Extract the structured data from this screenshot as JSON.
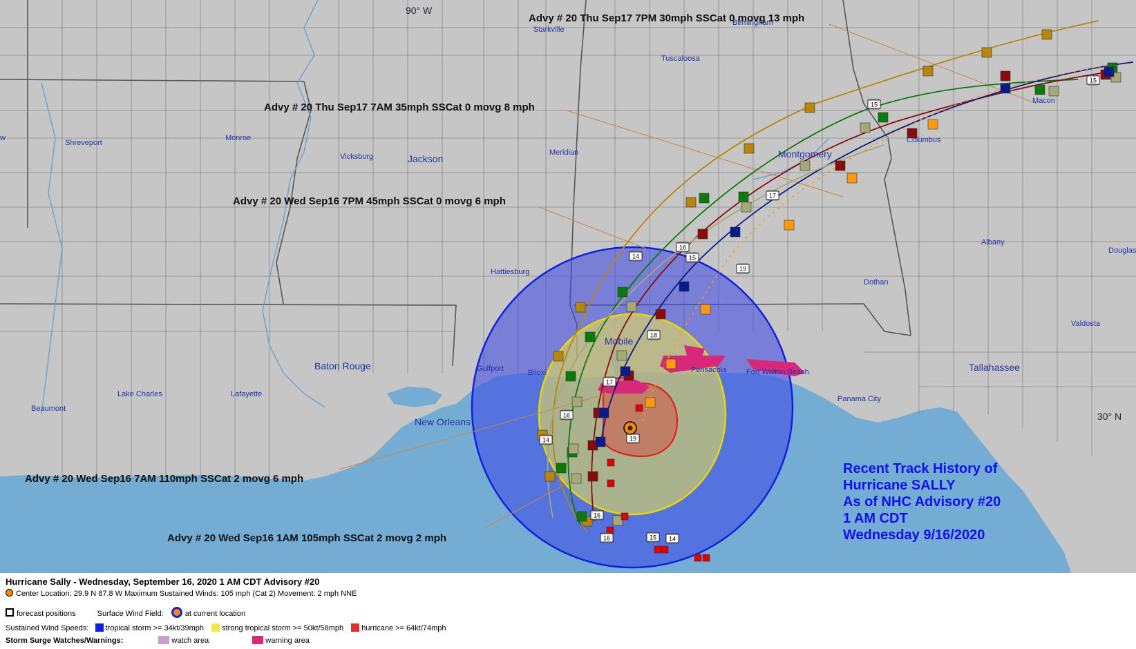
{
  "map": {
    "labels": {
      "lon_90w": "90° W",
      "lat_30n": "30° N"
    },
    "cities": [
      {
        "name": "Starkville",
        "cls": "city"
      },
      {
        "name": "Birmingham",
        "cls": "city"
      },
      {
        "name": "Tuscaloosa",
        "cls": "city"
      },
      {
        "name": "Shreveport",
        "cls": "city"
      },
      {
        "name": "Monroe",
        "cls": "city"
      },
      {
        "name": "Vicksburg",
        "cls": "city"
      },
      {
        "name": "Jackson",
        "cls": "big-city"
      },
      {
        "name": "Meridian",
        "cls": "city"
      },
      {
        "name": "Montgomery",
        "cls": "big-city"
      },
      {
        "name": "Columbus",
        "cls": "city"
      },
      {
        "name": "Macon",
        "cls": "city"
      },
      {
        "name": "Hattiesburg",
        "cls": "city"
      },
      {
        "name": "Albany",
        "cls": "city"
      },
      {
        "name": "Douglas",
        "cls": "city"
      },
      {
        "name": "Dothan",
        "cls": "city"
      },
      {
        "name": "Valdosta",
        "cls": "city"
      },
      {
        "name": "Mobile",
        "cls": "big-city"
      },
      {
        "name": "Baton Rouge",
        "cls": "big-city"
      },
      {
        "name": "Gulfport",
        "cls": "city"
      },
      {
        "name": "Biloxi",
        "cls": "city"
      },
      {
        "name": "Pensacola",
        "cls": "city"
      },
      {
        "name": "Fort Walton Beach",
        "cls": "city"
      },
      {
        "name": "Tallahassee",
        "cls": "big-city"
      },
      {
        "name": "Lake Charles",
        "cls": "city"
      },
      {
        "name": "Lafayette",
        "cls": "city"
      },
      {
        "name": "Beaumont",
        "cls": "city"
      },
      {
        "name": "New Orleans",
        "cls": "big-city"
      },
      {
        "name": "Panama City",
        "cls": "city"
      },
      {
        "name": "w",
        "cls": "city"
      }
    ],
    "advisories": [
      "Advy # 20 Thu Sep17 7PM  30mph SSCat 0 movg 13 mph",
      "Advy # 20 Thu Sep17 7AM  35mph SSCat 0 movg 8 mph",
      "Advy # 20 Wed Sep16 7PM  45mph SSCat 0 movg 6 mph",
      "Advy # 20 Wed Sep16 7AM  110mph SSCat 2 movg 6 mph",
      "Advy # 20 Wed Sep16 1AM  105mph SSCat 2 movg 2 mph"
    ],
    "title_lines": [
      "Recent Track History of",
      "Hurricane SALLY",
      "As of NHC Advisory #20",
      "1 AM CDT",
      "Wednesday 9/16/2020"
    ],
    "markers": {
      "green": [
        "16",
        "15"
      ],
      "olive": [
        "14"
      ],
      "navy": [
        "18",
        "16"
      ],
      "dred": [
        "17",
        "16",
        "15"
      ],
      "dark": [
        "15"
      ],
      "extra": [
        "14",
        "17",
        "19",
        "14",
        "15",
        "19",
        "16"
      ]
    },
    "track_colors": {
      "brown": "#b8860b",
      "green": "#0a7a0a",
      "olive": "#a6a878",
      "navy": "#0a1a8a",
      "dred": "#8b0a0a",
      "orange": "#ff9a10",
      "red": "#e00000"
    },
    "colors": {
      "land": "#c6c6c6",
      "water": "#74acd4",
      "ts_field": "#3a46e6",
      "sts_field": "#f2e84c",
      "hur_field": "#e0302c",
      "surge_warning": "#d8287a",
      "surge_watch": "#c8a0cc"
    }
  },
  "legend": {
    "header": "Hurricane Sally  -  Wednesday, September 16, 2020  1 AM CDT   Advisory #20",
    "center_line": "Center Location: 29.9 N  87.8 W   Maximum Sustained Winds: 105 mph (Cat 2)  Movement: 2 mph NNE",
    "forecast_positions": "forecast positions",
    "surface_wind_field": "Surface Wind Field:",
    "at_current_location": "at current location",
    "sustained_wind_speeds": "Sustained Wind Speeds:",
    "tropical_storm": "tropical storm >= 34kt/39mph",
    "strong_tropical_storm": "strong tropical storm >= 50kt/58mph",
    "hurricane": "hurricane >= 64kt/74mph",
    "storm_surge": "Storm Surge Watches/Warnings:",
    "watch_area": "watch area",
    "warning_area": "warning area"
  }
}
